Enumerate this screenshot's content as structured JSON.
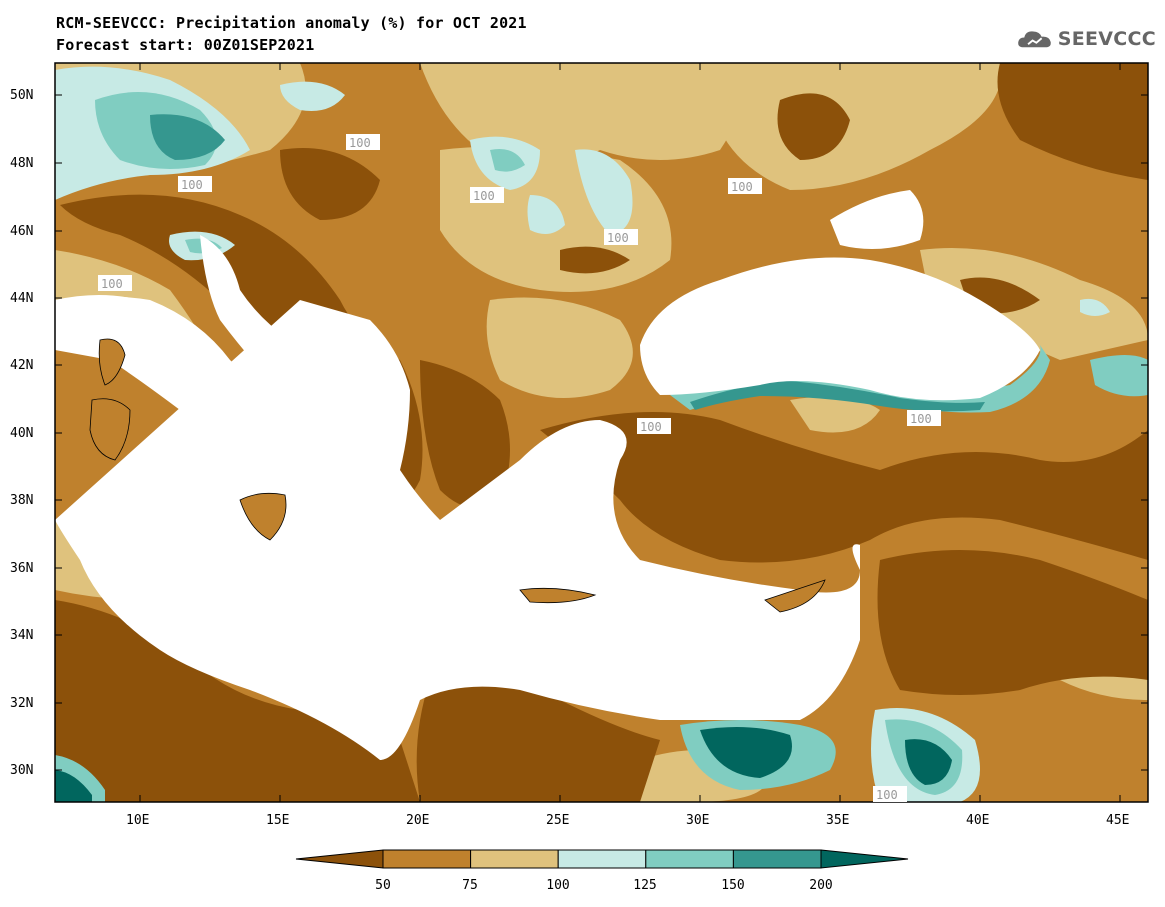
{
  "title_line1": "RCM-SEEVCCC: Precipitation anomaly (%) for OCT 2021",
  "title_line2": "Forecast start: 00Z01SEP2021",
  "logo_text": "SEEVCCC",
  "logo_icon": "cloud-icon",
  "map": {
    "lat_labels": [
      "50N",
      "48N",
      "46N",
      "44N",
      "42N",
      "40N",
      "38N",
      "36N",
      "34N",
      "32N",
      "30N"
    ],
    "lon_labels": [
      "10E",
      "15E",
      "20E",
      "25E",
      "30E",
      "35E",
      "40E",
      "45E"
    ],
    "contour_label": "100"
  },
  "legend": {
    "bins": [
      {
        "color": "#8c510a"
      },
      {
        "color": "#bf812d"
      },
      {
        "color": "#dfc27d"
      },
      {
        "color": "#c7eae5"
      },
      {
        "color": "#80cdc1"
      },
      {
        "color": "#35978f"
      },
      {
        "color": "#01665e"
      }
    ],
    "labels": [
      "50",
      "75",
      "100",
      "125",
      "150",
      "200"
    ]
  }
}
